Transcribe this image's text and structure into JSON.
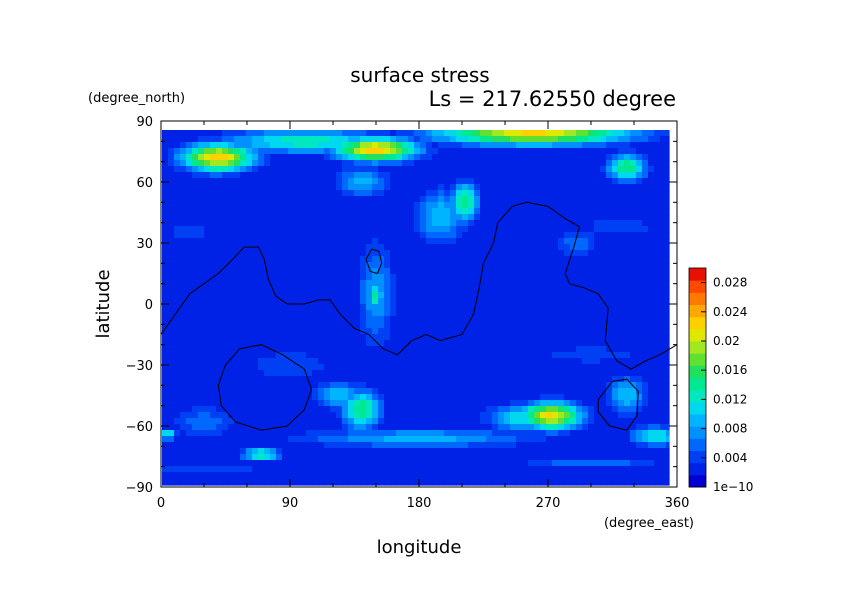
{
  "chart_data": {
    "type": "heatmap",
    "title": "surface stress",
    "subtitle": "Ls = 217.62550 degree",
    "xlabel": "longitude",
    "ylabel": "latitude",
    "x_unit": "(degree_east)",
    "y_unit": "(degree_north)",
    "xlim": [
      0,
      360
    ],
    "ylim": [
      -90,
      90
    ],
    "x_ticks": [
      "0",
      "90",
      "180",
      "270",
      "360"
    ],
    "y_ticks": [
      "90",
      "60",
      "30",
      "0",
      "−30",
      "−60",
      "−90"
    ],
    "colorbar": {
      "min": 0,
      "max": 0.03,
      "ticks": [
        "1e−10",
        "0.004",
        "0.008",
        "0.012",
        "0.016",
        "0.02",
        "0.024",
        "0.028"
      ],
      "colors": [
        "#0000d0",
        "#0022e6",
        "#0040f5",
        "#0068ff",
        "#0090ff",
        "#00b4ff",
        "#00d8f0",
        "#00e8c0",
        "#00e890",
        "#20e060",
        "#60e030",
        "#a0e820",
        "#e0e800",
        "#ffd000",
        "#ffa800",
        "#ff7800",
        "#ff4800",
        "#e81000"
      ]
    },
    "data_background": 0.002,
    "blobs": [
      {
        "lon": 40,
        "lat": 72,
        "rlon": 26,
        "rlat": 7,
        "v": 0.023
      },
      {
        "lon": 150,
        "lat": 76,
        "rlon": 30,
        "rlat": 6,
        "v": 0.023
      },
      {
        "lon": 260,
        "lat": 84,
        "rlon": 70,
        "rlat": 6,
        "v": 0.022
      },
      {
        "lon": 100,
        "lat": 80,
        "rlon": 60,
        "rlat": 6,
        "v": 0.013
      },
      {
        "lon": 325,
        "lat": 67,
        "rlon": 14,
        "rlat": 7,
        "v": 0.015
      },
      {
        "lon": 212,
        "lat": 50,
        "rlon": 10,
        "rlat": 10,
        "v": 0.015
      },
      {
        "lon": 195,
        "lat": 43,
        "rlon": 18,
        "rlat": 14,
        "v": 0.01
      },
      {
        "lon": 140,
        "lat": 60,
        "rlon": 20,
        "rlat": 8,
        "v": 0.009
      },
      {
        "lon": 150,
        "lat": 4,
        "rlon": 5,
        "rlat": 7,
        "v": 0.014
      },
      {
        "lon": 150,
        "lat": 5,
        "rlon": 14,
        "rlat": 28,
        "v": 0.008
      },
      {
        "lon": 140,
        "lat": -52,
        "rlon": 14,
        "rlat": 10,
        "v": 0.015
      },
      {
        "lon": 125,
        "lat": -45,
        "rlon": 18,
        "rlat": 7,
        "v": 0.01
      },
      {
        "lon": 272,
        "lat": -55,
        "rlon": 22,
        "rlat": 7,
        "v": 0.022
      },
      {
        "lon": 255,
        "lat": -56,
        "rlon": 28,
        "rlat": 7,
        "v": 0.012
      },
      {
        "lon": 70,
        "lat": -74,
        "rlon": 14,
        "rlat": 3,
        "v": 0.014
      },
      {
        "lon": 180,
        "lat": -66,
        "rlon": 90,
        "rlat": 5,
        "v": 0.009
      },
      {
        "lon": 30,
        "lat": -58,
        "rlon": 26,
        "rlat": 9,
        "v": 0.006
      },
      {
        "lon": 90,
        "lat": -30,
        "rlon": 35,
        "rlat": 9,
        "v": 0.005
      },
      {
        "lon": 325,
        "lat": -45,
        "rlon": 14,
        "rlat": 10,
        "v": 0.01
      },
      {
        "lon": 345,
        "lat": -65,
        "rlon": 18,
        "rlat": 5,
        "v": 0.012
      },
      {
        "lon": 5,
        "lat": -64,
        "rlon": 6,
        "rlat": 3,
        "v": 0.012
      },
      {
        "lon": 320,
        "lat": 38,
        "rlon": 30,
        "rlat": 6,
        "v": 0.005
      },
      {
        "lon": 20,
        "lat": 35,
        "rlon": 18,
        "rlat": 6,
        "v": 0.005
      },
      {
        "lon": 290,
        "lat": 30,
        "rlon": 18,
        "rlat": 8,
        "v": 0.006
      },
      {
        "lon": 300,
        "lat": -25,
        "rlon": 40,
        "rlat": 5,
        "v": 0.005
      },
      {
        "lon": 30,
        "lat": -82,
        "rlon": 60,
        "rlat": 3,
        "v": 0.005
      },
      {
        "lon": 300,
        "lat": -78,
        "rlon": 60,
        "rlat": 3,
        "v": 0.006
      }
    ],
    "contours": [
      [
        [
          0,
          -15
        ],
        [
          10,
          -5
        ],
        [
          20,
          5
        ],
        [
          30,
          10
        ],
        [
          40,
          15
        ],
        [
          50,
          22
        ],
        [
          58,
          28
        ],
        [
          68,
          28
        ],
        [
          72,
          22
        ],
        [
          75,
          12
        ],
        [
          80,
          4
        ],
        [
          88,
          0
        ],
        [
          100,
          0
        ],
        [
          110,
          2
        ],
        [
          118,
          2
        ],
        [
          125,
          -5
        ],
        [
          135,
          -12
        ],
        [
          145,
          -15
        ],
        [
          155,
          -22
        ],
        [
          165,
          -25
        ],
        [
          175,
          -18
        ],
        [
          185,
          -15
        ],
        [
          195,
          -18
        ],
        [
          210,
          -15
        ],
        [
          218,
          -5
        ],
        [
          222,
          8
        ],
        [
          225,
          20
        ],
        [
          232,
          30
        ],
        [
          235,
          40
        ],
        [
          245,
          48
        ],
        [
          255,
          50
        ],
        [
          270,
          48
        ],
        [
          282,
          42
        ],
        [
          292,
          38
        ],
        [
          288,
          28
        ],
        [
          282,
          15
        ],
        [
          285,
          10
        ],
        [
          295,
          8
        ],
        [
          305,
          5
        ],
        [
          312,
          -2
        ],
        [
          310,
          -18
        ],
        [
          318,
          -28
        ],
        [
          328,
          -32
        ],
        [
          338,
          -28
        ],
        [
          348,
          -25
        ],
        [
          360,
          -20
        ]
      ],
      [
        [
          143,
          22
        ],
        [
          147,
          27
        ],
        [
          152,
          26
        ],
        [
          154,
          20
        ],
        [
          151,
          15
        ],
        [
          146,
          16
        ],
        [
          143,
          22
        ]
      ],
      [
        [
          40,
          -40
        ],
        [
          45,
          -30
        ],
        [
          55,
          -22
        ],
        [
          70,
          -20
        ],
        [
          85,
          -25
        ],
        [
          100,
          -32
        ],
        [
          105,
          -42
        ],
        [
          100,
          -52
        ],
        [
          88,
          -60
        ],
        [
          70,
          -62
        ],
        [
          52,
          -58
        ],
        [
          42,
          -50
        ],
        [
          40,
          -40
        ]
      ],
      [
        [
          305,
          -47
        ],
        [
          315,
          -38
        ],
        [
          325,
          -37
        ],
        [
          333,
          -43
        ],
        [
          332,
          -55
        ],
        [
          325,
          -62
        ],
        [
          313,
          -60
        ],
        [
          305,
          -53
        ],
        [
          305,
          -47
        ]
      ]
    ]
  }
}
